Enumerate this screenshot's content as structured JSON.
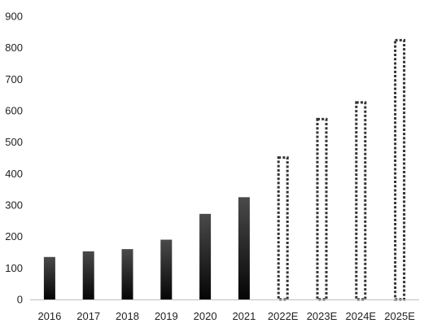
{
  "chart_data": {
    "type": "bar",
    "title": "",
    "xlabel": "",
    "ylabel": "",
    "ylim": [
      0,
      900
    ],
    "yticks": [
      0,
      100,
      200,
      300,
      400,
      500,
      600,
      700,
      800,
      900
    ],
    "grid": false,
    "legend": "none",
    "categories": [
      "2016",
      "2017",
      "2018",
      "2019",
      "2020",
      "2021",
      "2022E",
      "2023E",
      "2024E",
      "2025E"
    ],
    "values": [
      135,
      153,
      160,
      190,
      272,
      325,
      455,
      577,
      630,
      828
    ],
    "estimated": [
      false,
      false,
      false,
      false,
      false,
      false,
      true,
      true,
      true,
      true
    ],
    "colors": {
      "actual_top": "#4a4a4a",
      "actual_bottom": "#050505",
      "estimate_border": "#333333",
      "axis": "#bfbfbf",
      "text": "#222222"
    }
  }
}
